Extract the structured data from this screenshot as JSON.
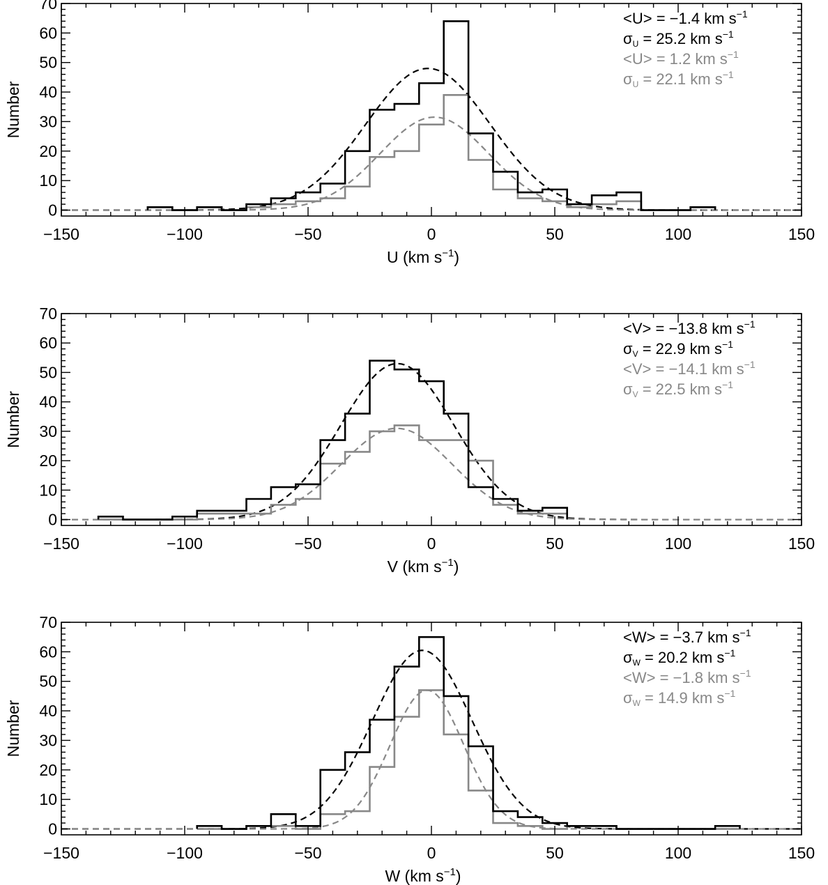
{
  "figure": {
    "colors": {
      "all": "#000000",
      "subset": "#888888"
    }
  },
  "chart_data": [
    {
      "type": "bar",
      "subtype": "histogram-step-with-gaussian-fit",
      "xlabel_main": "U (km s",
      "xlabel_sup": "−1",
      "xlabel_end": ")",
      "ylabel": "Number",
      "xlim": [
        -150,
        150
      ],
      "ylim": [
        -2,
        70
      ],
      "xticks": [
        -150,
        -100,
        -50,
        0,
        50,
        100,
        150
      ],
      "xtick_labels": [
        "−150",
        "−100",
        "−50",
        "0",
        "50",
        "100",
        "150"
      ],
      "yticks": [
        0,
        10,
        20,
        30,
        40,
        50,
        60,
        70
      ],
      "ytick_labels": [
        "0",
        "10",
        "20",
        "30",
        "40",
        "50",
        "60",
        "70"
      ],
      "bin_edges": [
        -115,
        -105,
        -95,
        -85,
        -75,
        -65,
        -55,
        -45,
        -35,
        -25,
        -15,
        -5,
        5,
        15,
        25,
        35,
        45,
        55,
        65,
        75,
        85,
        95,
        105,
        115
      ],
      "series": [
        {
          "color": "#000000",
          "counts": [
            1,
            0,
            1,
            0,
            2,
            4,
            6,
            9,
            20,
            34,
            36,
            43,
            64,
            26,
            13,
            6,
            7,
            2,
            5,
            6,
            0,
            0,
            1
          ]
        },
        {
          "color": "#888888",
          "counts": [
            1,
            0,
            1,
            0,
            1,
            2,
            3,
            4,
            8,
            18,
            20,
            29,
            39,
            17,
            7,
            4,
            3,
            1,
            2,
            3,
            0,
            0,
            1
          ]
        }
      ],
      "fits": [
        {
          "color": "#000000",
          "mean": -1.4,
          "sigma": 25.2,
          "amplitude": 48
        },
        {
          "color": "#888888",
          "mean": 1.2,
          "sigma": 22.1,
          "amplitude": 31.5
        }
      ],
      "annotations": [
        {
          "pre": "<U> = −1.4 km s",
          "sub": "",
          "post": "",
          "sup": "−1",
          "color": "#000000"
        },
        {
          "pre": "σ",
          "sub": "U",
          "post": " = 25.2 km s",
          "sup": "−1",
          "color": "#000000"
        },
        {
          "pre": "<U> = 1.2 km s",
          "sub": "",
          "post": "",
          "sup": "−1",
          "color": "#888888"
        },
        {
          "pre": "σ",
          "sub": "U",
          "post": " = 22.1 km s",
          "sup": "−1",
          "color": "#888888"
        }
      ],
      "grid": false
    },
    {
      "type": "bar",
      "subtype": "histogram-step-with-gaussian-fit",
      "xlabel_main": "V (km s",
      "xlabel_sup": "−1",
      "xlabel_end": ")",
      "ylabel": "Number",
      "xlim": [
        -150,
        150
      ],
      "ylim": [
        -2,
        70
      ],
      "xticks": [
        -150,
        -100,
        -50,
        0,
        50,
        100,
        150
      ],
      "xtick_labels": [
        "−150",
        "−100",
        "−50",
        "0",
        "50",
        "100",
        "150"
      ],
      "yticks": [
        0,
        10,
        20,
        30,
        40,
        50,
        60,
        70
      ],
      "ytick_labels": [
        "0",
        "10",
        "20",
        "30",
        "40",
        "50",
        "60",
        "70"
      ],
      "bin_edges": [
        -135,
        -125,
        -115,
        -105,
        -95,
        -85,
        -75,
        -65,
        -55,
        -45,
        -35,
        -25,
        -15,
        -5,
        5,
        15,
        25,
        35,
        45,
        55
      ],
      "series": [
        {
          "color": "#000000",
          "counts": [
            1,
            0,
            0,
            1,
            3,
            3,
            7,
            11,
            12,
            27,
            36,
            54,
            51,
            47,
            36,
            11,
            7,
            3,
            4
          ]
        },
        {
          "color": "#888888",
          "counts": [
            0,
            0,
            0,
            0,
            2,
            2,
            2,
            5,
            7,
            19,
            23,
            30,
            32,
            27,
            27,
            20,
            5,
            2,
            2
          ]
        }
      ],
      "fits": [
        {
          "color": "#000000",
          "mean": -13.8,
          "sigma": 22.9,
          "amplitude": 53
        },
        {
          "color": "#888888",
          "mean": -14.1,
          "sigma": 22.5,
          "amplitude": 31
        }
      ],
      "annotations": [
        {
          "pre": "<V> = −13.8 km s",
          "sub": "",
          "post": "",
          "sup": "−1",
          "color": "#000000"
        },
        {
          "pre": "σ",
          "sub": "V",
          "post": " = 22.9 km s",
          "sup": "−1",
          "color": "#000000"
        },
        {
          "pre": "<V> = −14.1 km s",
          "sub": "",
          "post": "",
          "sup": "−1",
          "color": "#888888"
        },
        {
          "pre": "σ",
          "sub": "V",
          "post": " = 22.5 km s",
          "sup": "−1",
          "color": "#888888"
        }
      ],
      "grid": false
    },
    {
      "type": "bar",
      "subtype": "histogram-step-with-gaussian-fit",
      "xlabel_main": "W (km s",
      "xlabel_sup": "−1",
      "xlabel_end": ")",
      "ylabel": "Number",
      "xlim": [
        -150,
        150
      ],
      "ylim": [
        -2,
        70
      ],
      "xticks": [
        -150,
        -100,
        -50,
        0,
        50,
        100,
        150
      ],
      "xtick_labels": [
        "−150",
        "−100",
        "−50",
        "0",
        "50",
        "100",
        "150"
      ],
      "yticks": [
        0,
        10,
        20,
        30,
        40,
        50,
        60,
        70
      ],
      "ytick_labels": [
        "0",
        "10",
        "20",
        "30",
        "40",
        "50",
        "60",
        "70"
      ],
      "bin_edges": [
        -95,
        -85,
        -75,
        -65,
        -55,
        -45,
        -35,
        -25,
        -15,
        -5,
        5,
        15,
        25,
        35,
        45,
        55,
        65,
        75,
        85,
        95,
        105,
        115,
        125
      ],
      "series": [
        {
          "color": "#000000",
          "counts": [
            1,
            0,
            1,
            5,
            1,
            20,
            26,
            37,
            55,
            65,
            45,
            28,
            6,
            4,
            2,
            1,
            1,
            0,
            0,
            0,
            0,
            1
          ]
        },
        {
          "color": "#888888",
          "counts": [
            0,
            0,
            1,
            1,
            0,
            5,
            6,
            21,
            38,
            47,
            32,
            13,
            2,
            1,
            0,
            1,
            1,
            0,
            0,
            0,
            0,
            0
          ]
        }
      ],
      "fits": [
        {
          "color": "#000000",
          "mean": -3.7,
          "sigma": 20.2,
          "amplitude": 60.5
        },
        {
          "color": "#888888",
          "mean": -1.8,
          "sigma": 14.9,
          "amplitude": 47
        }
      ],
      "annotations": [
        {
          "pre": "<W> = −3.7 km s",
          "sub": "",
          "post": "",
          "sup": "−1",
          "color": "#000000"
        },
        {
          "pre": "σ",
          "sub": "W",
          "post": " = 20.2 km s",
          "sup": "−1",
          "color": "#000000"
        },
        {
          "pre": "<W> = −1.8 km s",
          "sub": "",
          "post": "",
          "sup": "−1",
          "color": "#888888"
        },
        {
          "pre": "σ",
          "sub": "W",
          "post": " = 14.9 km s",
          "sup": "−1",
          "color": "#888888"
        }
      ],
      "grid": false
    }
  ]
}
